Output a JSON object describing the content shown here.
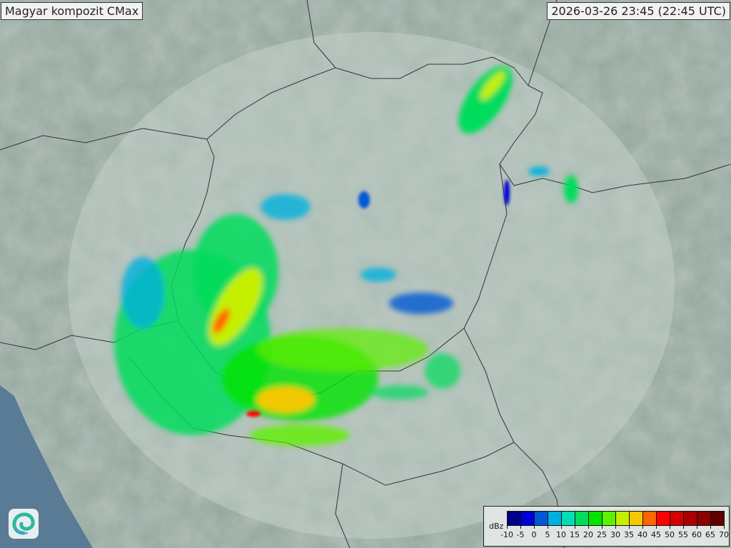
{
  "header": {
    "title": "Magyar kompozit  CMax",
    "timestamp": "2026-03-26 23:45 (22:45 UTC)"
  },
  "legend": {
    "unit": "dBz",
    "ticks": [
      "-10",
      "-5",
      "0",
      "5",
      "10",
      "15",
      "20",
      "25",
      "30",
      "35",
      "40",
      "45",
      "50",
      "55",
      "60",
      "65",
      "70"
    ],
    "colors": [
      "#00008c",
      "#0000d4",
      "#0058d4",
      "#00b0dc",
      "#00dcb8",
      "#00dc5c",
      "#00e400",
      "#5ef000",
      "#c4f000",
      "#f4c800",
      "#ff6400",
      "#ff0000",
      "#d40000",
      "#ac0000",
      "#880000",
      "#600000"
    ]
  },
  "logo": {
    "icon": "swirl-logo-icon"
  },
  "colors": {
    "background": "#8fa39a",
    "radar_coverage": "#c3d1cc",
    "borders": "#333333",
    "sea": "#5a7b96"
  }
}
